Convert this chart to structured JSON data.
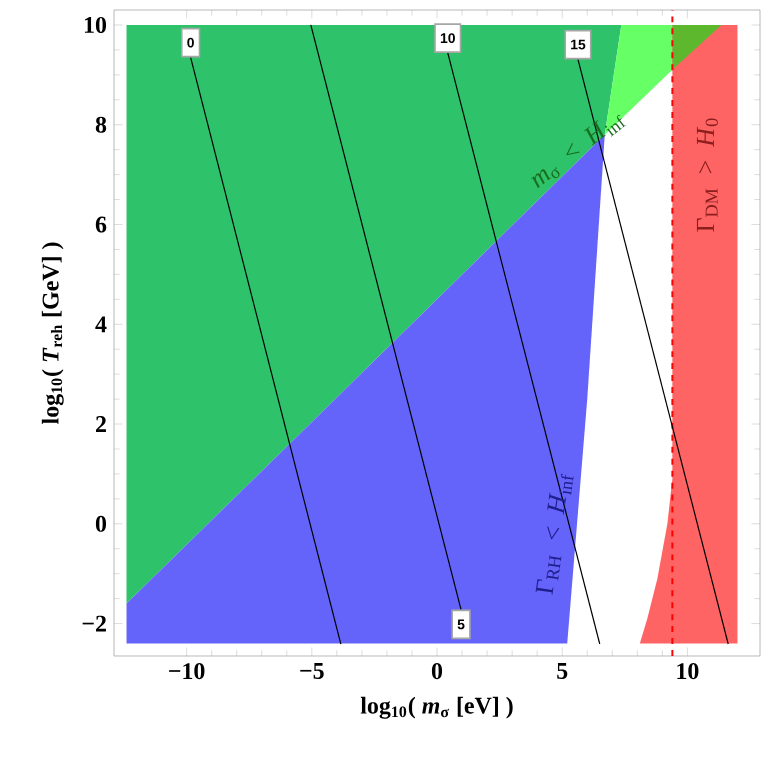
{
  "chart_data": {
    "type": "area",
    "xlabel": "log$_{10}$( *m*$_{σ}$ [eV] )",
    "ylabel": "log$_{10}$( *T*$_{reh}$ [GeV] )",
    "xlim": [
      -12.9,
      12.9
    ],
    "ylim": [
      -2.65,
      10.3
    ],
    "xticks": [
      {
        "value": -10,
        "label": "−10"
      },
      {
        "value": -5,
        "label": "−5"
      },
      0,
      5,
      10
    ],
    "yticks": [
      {
        "value": -2,
        "label": "−2"
      },
      0,
      2,
      4,
      6,
      8,
      10
    ],
    "series": [
      {
        "color": "#2ec26a",
        "x": [
          -12.4,
          -12.4,
          7.36,
          6.7
        ],
        "values": [
          -1.6,
          10,
          10,
          7.8
        ]
      },
      {
        "color": "#66ff66",
        "x": [
          6.7,
          7.36,
          9.4,
          9.4
        ],
        "values": [
          7.8,
          10,
          10,
          9.1
        ]
      },
      {
        "color": "#6464fa",
        "x": [
          -12.4,
          6.7,
          6.0,
          5.2,
          -12.4
        ],
        "values": [
          -1.6,
          7.8,
          2.5,
          -2.4,
          -2.4
        ]
      },
      {
        "color": "#ff6464",
        "x": [
          8.1,
          8.4,
          8.8,
          9.2,
          9.4,
          9.4,
          12,
          12
        ],
        "values": [
          -2.4,
          -1.9,
          -1.1,
          0,
          0.9,
          10,
          10,
          -2.4
        ]
      },
      {
        "color": "#5db82e",
        "x": [
          9.4,
          9.4,
          11.36
        ],
        "values": [
          9.1,
          10,
          10
        ]
      },
      {
        "type": "line",
        "name": "0",
        "color": "#000000",
        "x": [
          -9.84,
          -3.84
        ],
        "values": [
          9.35,
          -2.41
        ]
      },
      {
        "type": "line",
        "name": "5",
        "color": "#000000",
        "x": [
          0.96,
          -5.04
        ],
        "values": [
          -1.72,
          10
        ]
      },
      {
        "type": "line",
        "name": "10",
        "color": "#000000",
        "x": [
          0.43,
          6.5
        ],
        "values": [
          9.44,
          -2.41
        ]
      },
      {
        "type": "line",
        "name": "15",
        "color": "#000000",
        "x": [
          5.63,
          11.63
        ],
        "values": [
          9.31,
          -2.41
        ]
      }
    ],
    "ref_lines": [
      {
        "axis": "x",
        "value": 9.4,
        "color": "#ff0000",
        "line_style": "dashed"
      }
    ],
    "annotations": [
      "*m*$_{σ}$ < *H*$_{inf}$",
      "Γ$_{RH}$ < *H*$_{inf}$",
      "Γ$_{DM}$ > *H*$_{0}$"
    ]
  }
}
